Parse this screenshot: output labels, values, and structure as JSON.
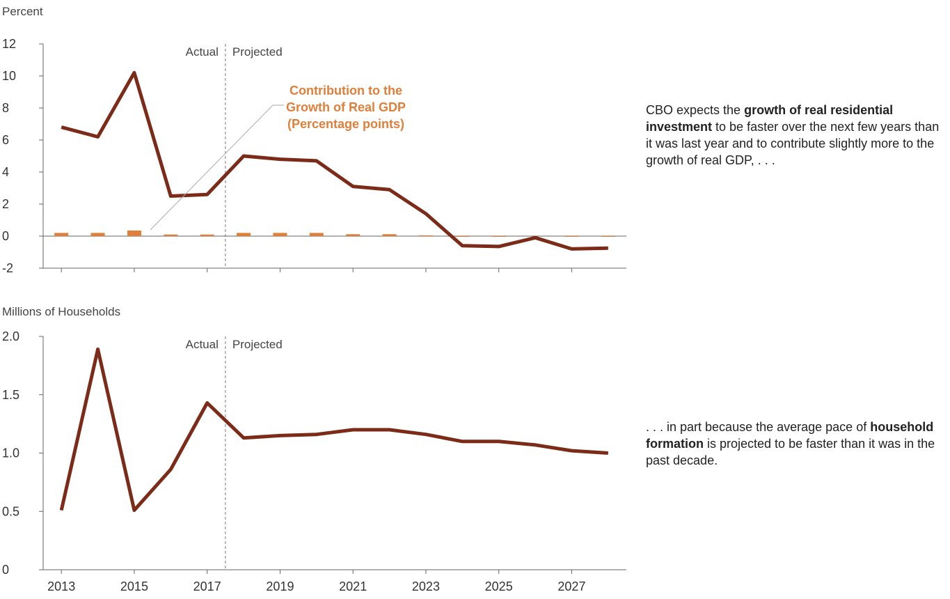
{
  "colors": {
    "line": "#7b2b18",
    "bar": "#e07f3a",
    "axis": "#666666",
    "text": "#333333",
    "annotation": "#e07f3a"
  },
  "chart_data": [
    {
      "type": "line",
      "ylabel": "Percent",
      "x": [
        2013,
        2014,
        2015,
        2016,
        2017,
        2018,
        2019,
        2020,
        2021,
        2022,
        2023,
        2024,
        2025,
        2026,
        2027,
        2028
      ],
      "xlim": [
        2012.5,
        2028.5
      ],
      "ylim": [
        -2,
        12
      ],
      "yticks": [
        "12",
        "10",
        "8",
        "6",
        "4",
        "2",
        "0",
        "-2"
      ],
      "divider": {
        "x": 2017.5,
        "left_label": "Actual",
        "right_label": "Projected"
      },
      "series": [
        {
          "values": [
            6.8,
            6.2,
            10.2,
            2.5,
            2.6,
            5.0,
            4.8,
            4.7,
            3.1,
            2.9,
            1.4,
            -0.6,
            -0.65,
            -0.1,
            -0.8,
            -0.75
          ]
        },
        {
          "name": "Contribution to the Growth of Real GDP (Percentage points)",
          "type": "bar",
          "values": [
            0.2,
            0.2,
            0.35,
            0.1,
            0.1,
            0.2,
            0.2,
            0.2,
            0.12,
            0.12,
            0.05,
            -0.02,
            -0.02,
            0.0,
            -0.03,
            -0.03
          ]
        }
      ],
      "annotation": {
        "lines": [
          "Contribution to the",
          "Growth of Real GDP",
          "(Percentage points)"
        ]
      }
    },
    {
      "type": "line",
      "ylabel": "Millions of Households",
      "x": [
        2013,
        2014,
        2015,
        2016,
        2017,
        2018,
        2019,
        2020,
        2021,
        2022,
        2023,
        2024,
        2025,
        2026,
        2027,
        2028
      ],
      "xlim": [
        2012.5,
        2028.5
      ],
      "ylim": [
        0,
        2.0
      ],
      "yticks": [
        "2.0",
        "1.5",
        "1.0",
        "0.5",
        "0"
      ],
      "xtick_labels": [
        "2013",
        "2015",
        "2017",
        "2019",
        "2021",
        "2023",
        "2025",
        "2027"
      ],
      "divider": {
        "x": 2017.5,
        "left_label": "Actual",
        "right_label": "Projected"
      },
      "series": [
        {
          "values": [
            0.51,
            1.89,
            0.51,
            0.86,
            1.43,
            1.13,
            1.15,
            1.16,
            1.2,
            1.2,
            1.16,
            1.1,
            1.1,
            1.07,
            1.02,
            1.0
          ]
        }
      ]
    }
  ],
  "notes": [
    {
      "pre": "CBO expects the ",
      "bold": "growth of real residential investment",
      "post": " to be faster over the next few years than it was last year and to contribute slightly more to the growth of real GDP, . . ."
    },
    {
      "pre": ". . . in part because the average pace of ",
      "bold": "household formation",
      "post": " is projected to be faster than it was in the past decade."
    }
  ]
}
